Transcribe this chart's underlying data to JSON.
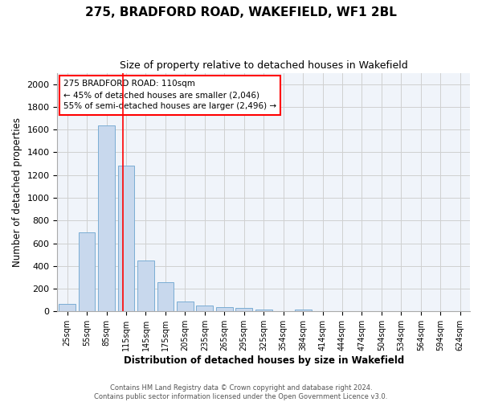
{
  "title_line1": "275, BRADFORD ROAD, WAKEFIELD, WF1 2BL",
  "title_line2": "Size of property relative to detached houses in Wakefield",
  "xlabel": "Distribution of detached houses by size in Wakefield",
  "ylabel": "Number of detached properties",
  "bar_color": "#c8d8ed",
  "bar_edge_color": "#7aadd4",
  "categories": [
    "25sqm",
    "55sqm",
    "85sqm",
    "115sqm",
    "145sqm",
    "175sqm",
    "205sqm",
    "235sqm",
    "265sqm",
    "295sqm",
    "325sqm",
    "354sqm",
    "384sqm",
    "414sqm",
    "444sqm",
    "474sqm",
    "504sqm",
    "534sqm",
    "564sqm",
    "594sqm",
    "624sqm"
  ],
  "values": [
    65,
    695,
    1640,
    1285,
    445,
    255,
    90,
    55,
    38,
    28,
    18,
    0,
    18,
    0,
    0,
    0,
    0,
    0,
    0,
    0,
    0
  ],
  "ylim": [
    0,
    2100
  ],
  "yticks": [
    0,
    200,
    400,
    600,
    800,
    1000,
    1200,
    1400,
    1600,
    1800,
    2000
  ],
  "annotation_title": "275 BRADFORD ROAD: 110sqm",
  "annotation_line2": "← 45% of detached houses are smaller (2,046)",
  "annotation_line3": "55% of semi-detached houses are larger (2,496) →",
  "footer_line1": "Contains HM Land Registry data © Crown copyright and database right 2024.",
  "footer_line2": "Contains public sector information licensed under the Open Government Licence v3.0.",
  "grid_color": "#d0d0d0",
  "background_color": "#f0f4fa"
}
